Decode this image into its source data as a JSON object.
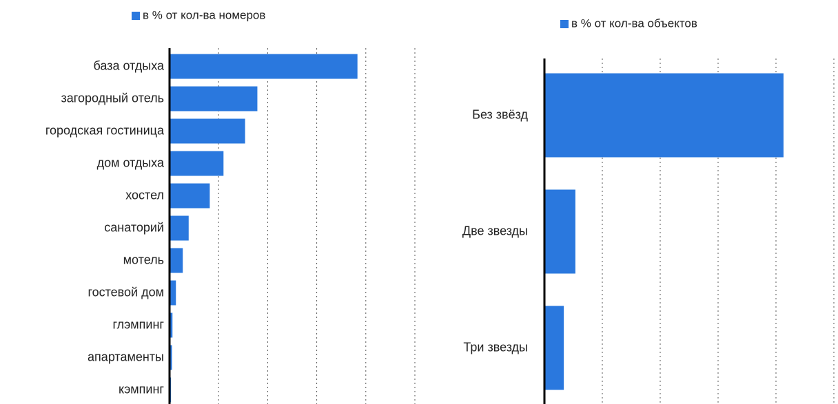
{
  "chart_data": [
    {
      "type": "barh",
      "categories": [
        "база отдыха",
        "загородный отель",
        "городская гостиница",
        "дом отдыха",
        "хостел",
        "санаторий",
        "мотель",
        "гостевой дом",
        "глэмпинг",
        "апартаменты",
        "кэмпинг"
      ],
      "series": [
        {
          "name": "в % от кол-ва номеров",
          "color": "#2a78de",
          "values": [
            38.3,
            17.9,
            15.4,
            11.0,
            8.2,
            3.9,
            2.7,
            1.3,
            0.6,
            0.5,
            0.3
          ]
        }
      ],
      "xlim": [
        0,
        50
      ],
      "xticks": [
        0,
        10,
        20,
        30,
        40,
        50
      ],
      "grid": true,
      "legend": "top"
    },
    {
      "type": "barh",
      "categories": [
        "Без звёзд",
        "Две звезды",
        "Три звезды"
      ],
      "series": [
        {
          "name": "в % от кол-ва объектов",
          "color": "#2a78de",
          "values": [
            82.6,
            10.7,
            6.7
          ]
        }
      ],
      "xlim": [
        0,
        100
      ],
      "xticks": [
        0,
        20,
        40,
        60,
        80,
        100
      ],
      "grid": true,
      "legend": "top"
    }
  ]
}
